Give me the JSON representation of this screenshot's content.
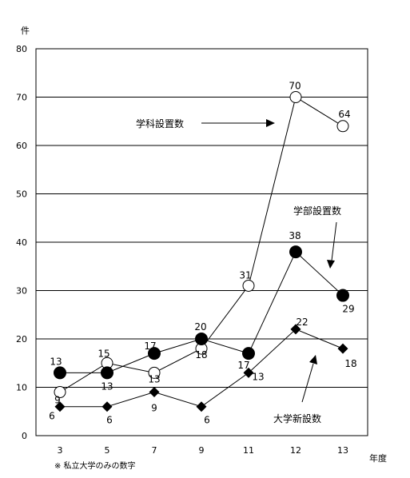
{
  "chart_data": {
    "type": "line",
    "y_unit": "件",
    "x_unit": "年度",
    "footnote": "※ 私立大学のみの数字",
    "categories": [
      "3",
      "5",
      "7",
      "9",
      "11",
      "12",
      "13"
    ],
    "ylim": [
      0,
      80
    ],
    "yticks": [
      "0",
      "10",
      "20",
      "30",
      "40",
      "50",
      "60",
      "70",
      "80"
    ],
    "grid": true,
    "series": [
      {
        "name": "学科設置数",
        "marker": "open-circle",
        "values": [
          9,
          15,
          13,
          18,
          31,
          70,
          64
        ],
        "labels": [
          "9",
          "15",
          "13",
          "18",
          "31",
          "70",
          "64"
        ]
      },
      {
        "name": "学部設置数",
        "marker": "filled-circle",
        "values": [
          13,
          13,
          17,
          20,
          17,
          38,
          29
        ],
        "labels": [
          "13",
          "13",
          "17",
          "20",
          "17",
          "38",
          "29"
        ]
      },
      {
        "name": "大学新設数",
        "marker": "filled-diamond",
        "values": [
          6,
          6,
          9,
          6,
          13,
          22,
          18
        ],
        "labels": [
          "6",
          "6",
          "9",
          "6",
          "13",
          "22",
          "18"
        ]
      }
    ]
  },
  "colors": {
    "line": "#000000",
    "grid": "#000000",
    "background": "#ffffff"
  }
}
